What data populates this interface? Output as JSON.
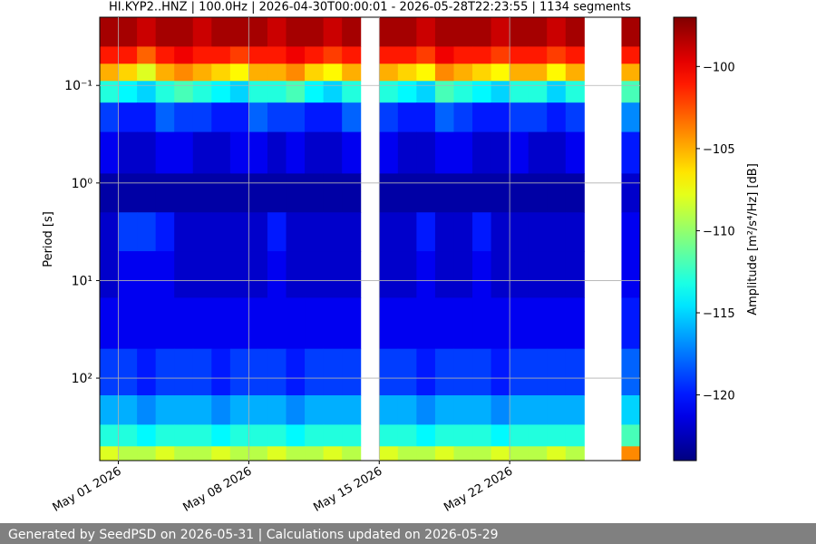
{
  "chart_data": {
    "type": "spectrogram",
    "title": "HI.KYP2..HNZ | 100.0Hz | 2026-04-30T00:00:01 - 2026-05-28T22:23:55 | 1134 segments",
    "y_label": "Period [s]",
    "colorbar_label": "Amplitude [m²/s⁴/Hz] [dB]",
    "footer": "Generated by SeedPSD on 2026-05-31 | Calculations updated on 2026-05-29",
    "xlim": [
      "2026-04-30",
      "2026-05-29"
    ],
    "xticks": [
      {
        "value": "2026-05-01",
        "label": "May 01 2026"
      },
      {
        "value": "2026-05-08",
        "label": "May 08 2026"
      },
      {
        "value": "2026-05-15",
        "label": "May 15 2026"
      },
      {
        "value": "2026-05-22",
        "label": "May 22 2026"
      }
    ],
    "ylim": [
      0.02,
      700
    ],
    "y_log": true,
    "y_inverted": true,
    "yticks": [
      {
        "value": 0.1,
        "label": "10⁻¹"
      },
      {
        "value": 1,
        "label": "10⁰"
      },
      {
        "value": 10,
        "label": "10¹"
      },
      {
        "value": 100,
        "label": "10²"
      }
    ],
    "grid": true,
    "colormap": "jet",
    "clim": [
      -124,
      -97
    ],
    "cticks": [
      {
        "value": -100,
        "label": "−100"
      },
      {
        "value": -105,
        "label": "−105"
      },
      {
        "value": -110,
        "label": "−110"
      },
      {
        "value": -115,
        "label": "−115"
      },
      {
        "value": -120,
        "label": "−120"
      }
    ],
    "xbins": [
      "2026-04-30",
      "2026-05-01",
      "2026-05-02",
      "2026-05-03",
      "2026-05-04",
      "2026-05-05",
      "2026-05-06",
      "2026-05-07",
      "2026-05-08",
      "2026-05-09",
      "2026-05-10",
      "2026-05-11",
      "2026-05-12",
      "2026-05-13",
      "2026-05-14",
      "2026-05-15",
      "2026-05-16",
      "2026-05-17",
      "2026-05-18",
      "2026-05-19",
      "2026-05-20",
      "2026-05-21",
      "2026-05-22",
      "2026-05-23",
      "2026-05-24",
      "2026-05-25",
      "2026-05-26",
      "2026-05-27",
      "2026-05-28",
      "2026-05-29"
    ],
    "ybins": [
      0.02,
      0.04,
      0.06,
      0.09,
      0.15,
      0.3,
      0.8,
      2,
      5,
      15,
      50,
      150,
      300,
      500,
      700
    ],
    "values": [
      [
        -98,
        -98,
        -99,
        -98,
        -98,
        -99,
        -98,
        -98,
        -98,
        -99,
        -98,
        -98,
        -99,
        -98,
        null,
        -98,
        -98,
        -99,
        -98,
        -98,
        -98,
        -99,
        -98,
        -98,
        -99,
        -98,
        null,
        null,
        -98
      ],
      [
        -101,
        -101,
        -103,
        -101,
        -100,
        -101,
        -101,
        -102,
        -101,
        -101,
        -100,
        -101,
        -102,
        -101,
        null,
        -101,
        -101,
        -102,
        -100,
        -101,
        -101,
        -102,
        -101,
        -101,
        -102,
        -101,
        null,
        null,
        -101
      ],
      [
        -105,
        -106,
        -108,
        -105,
        -104,
        -105,
        -106,
        -107,
        -105,
        -105,
        -104,
        -106,
        -107,
        -105,
        null,
        -105,
        -106,
        -107,
        -104,
        -105,
        -106,
        -107,
        -105,
        -105,
        -107,
        -105,
        null,
        null,
        -105
      ],
      [
        -113,
        -114,
        -115,
        -113,
        -112,
        -113,
        -114,
        -115,
        -113,
        -113,
        -112,
        -114,
        -115,
        -113,
        null,
        -113,
        -114,
        -115,
        -112,
        -113,
        -114,
        -115,
        -113,
        -113,
        -115,
        -113,
        null,
        null,
        -112
      ],
      [
        -119,
        -120,
        -120,
        -118,
        -119,
        -119,
        -120,
        -120,
        -118,
        -119,
        -119,
        -120,
        -120,
        -118,
        null,
        -119,
        -120,
        -120,
        -118,
        -119,
        -120,
        -120,
        -119,
        -119,
        -120,
        -119,
        null,
        null,
        -117
      ],
      [
        -121,
        -122,
        -122,
        -121,
        -121,
        -122,
        -122,
        -121,
        -121,
        -122,
        -121,
        -122,
        -122,
        -121,
        null,
        -121,
        -122,
        -122,
        -121,
        -121,
        -122,
        -122,
        -121,
        -122,
        -122,
        -121,
        null,
        null,
        -120
      ],
      [
        -123,
        -123,
        -123,
        -123,
        -123,
        -123,
        -123,
        -123,
        -123,
        -123,
        -123,
        -123,
        -123,
        -123,
        null,
        -123,
        -123,
        -123,
        -123,
        -123,
        -123,
        -123,
        -123,
        -123,
        -123,
        -123,
        null,
        null,
        -122
      ],
      [
        -122,
        -119,
        -119,
        -120,
        -122,
        -122,
        -122,
        -122,
        -122,
        -120,
        -122,
        -122,
        -122,
        -122,
        null,
        -122,
        -122,
        -120,
        -122,
        -122,
        -120,
        -122,
        -122,
        -122,
        -122,
        -122,
        null,
        null,
        -121
      ],
      [
        -122,
        -121,
        -121,
        -121,
        -122,
        -122,
        -122,
        -122,
        -122,
        -121,
        -122,
        -122,
        -122,
        -122,
        null,
        -122,
        -122,
        -121,
        -122,
        -122,
        -121,
        -122,
        -122,
        -122,
        -122,
        -122,
        null,
        null,
        -121
      ],
      [
        -121,
        -121,
        -121,
        -121,
        -121,
        -121,
        -121,
        -121,
        -121,
        -121,
        -121,
        -121,
        -121,
        -121,
        null,
        -121,
        -121,
        -121,
        -121,
        -121,
        -121,
        -121,
        -121,
        -121,
        -121,
        -121,
        null,
        null,
        -120
      ],
      [
        -119,
        -119,
        -120,
        -119,
        -119,
        -119,
        -120,
        -119,
        -119,
        -119,
        -120,
        -119,
        -119,
        -119,
        null,
        -119,
        -119,
        -120,
        -119,
        -119,
        -119,
        -120,
        -119,
        -119,
        -119,
        -119,
        null,
        null,
        -118
      ],
      [
        -116,
        -116,
        -117,
        -116,
        -116,
        -116,
        -117,
        -116,
        -116,
        -116,
        -117,
        -116,
        -116,
        -116,
        null,
        -116,
        -116,
        -117,
        -116,
        -116,
        -116,
        -117,
        -116,
        -116,
        -116,
        -116,
        null,
        null,
        -115
      ],
      [
        -113,
        -113,
        -114,
        -113,
        -113,
        -113,
        -114,
        -113,
        -113,
        -113,
        -114,
        -113,
        -113,
        -113,
        null,
        -113,
        -113,
        -114,
        -113,
        -113,
        -113,
        -114,
        -113,
        -113,
        -113,
        -113,
        null,
        null,
        -112
      ],
      [
        -108,
        -109,
        -109,
        -108,
        -109,
        -109,
        -108,
        -109,
        -109,
        -108,
        -109,
        -109,
        -108,
        -109,
        null,
        -108,
        -109,
        -109,
        -108,
        -109,
        -109,
        -108,
        -109,
        -109,
        -108,
        -109,
        null,
        null,
        -104
      ]
    ]
  }
}
